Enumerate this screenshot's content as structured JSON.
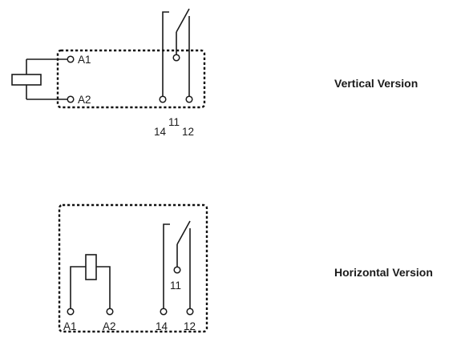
{
  "vertical": {
    "caption": "Vertical Version",
    "coil_labels": [
      "A1",
      "A2"
    ],
    "contact_labels": [
      "14",
      "11",
      "12"
    ]
  },
  "horizontal": {
    "caption": "Horizontal Version",
    "coil_labels": [
      "A1",
      "A2"
    ],
    "contact_labels": [
      "14",
      "11",
      "12"
    ]
  }
}
